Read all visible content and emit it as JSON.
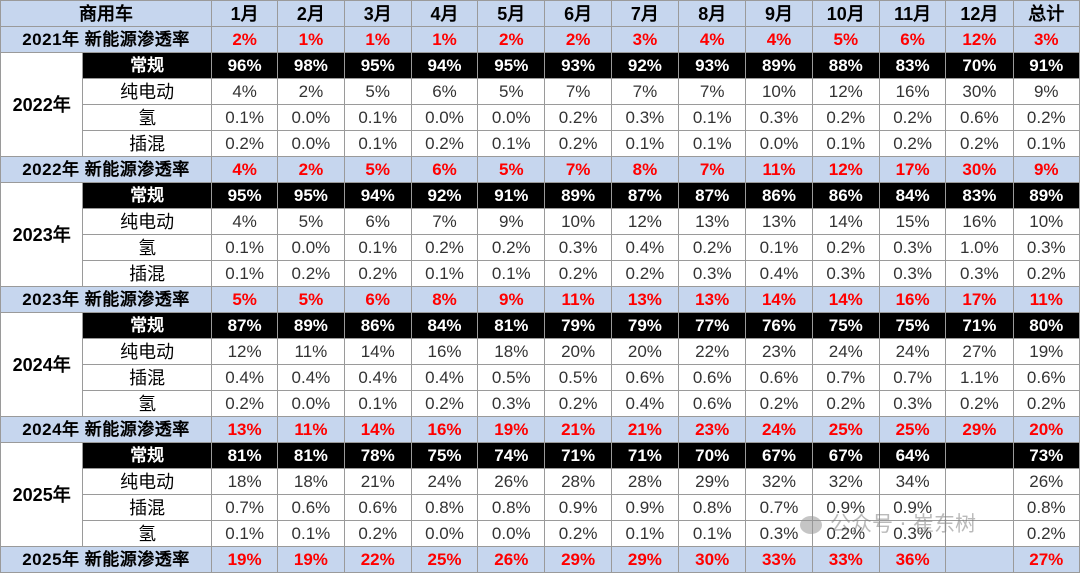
{
  "header": {
    "corner": "商用车",
    "months": [
      "1月",
      "2月",
      "3月",
      "4月",
      "5月",
      "6月",
      "7月",
      "8月",
      "9月",
      "10月",
      "11月",
      "12月",
      "总计"
    ]
  },
  "rows": [
    {
      "kind": "pen",
      "label": "2021年 新能源渗透率",
      "values": [
        "2%",
        "1%",
        "1%",
        "1%",
        "2%",
        "2%",
        "3%",
        "4%",
        "4%",
        "5%",
        "6%",
        "12%",
        "3%"
      ]
    },
    {
      "kind": "conv",
      "year": "2022年",
      "name": "常规",
      "values": [
        "96%",
        "98%",
        "95%",
        "94%",
        "95%",
        "93%",
        "92%",
        "93%",
        "89%",
        "88%",
        "83%",
        "70%",
        "91%"
      ]
    },
    {
      "kind": "sub",
      "name": "纯电动",
      "values": [
        "4%",
        "2%",
        "5%",
        "6%",
        "5%",
        "7%",
        "7%",
        "7%",
        "10%",
        "12%",
        "16%",
        "30%",
        "9%"
      ]
    },
    {
      "kind": "sub",
      "name": "氢",
      "values": [
        "0.1%",
        "0.0%",
        "0.1%",
        "0.0%",
        "0.0%",
        "0.2%",
        "0.3%",
        "0.1%",
        "0.3%",
        "0.2%",
        "0.2%",
        "0.6%",
        "0.2%"
      ]
    },
    {
      "kind": "sub",
      "name": "插混",
      "values": [
        "0.2%",
        "0.0%",
        "0.1%",
        "0.2%",
        "0.1%",
        "0.2%",
        "0.1%",
        "0.1%",
        "0.0%",
        "0.1%",
        "0.2%",
        "0.2%",
        "0.1%"
      ]
    },
    {
      "kind": "pen",
      "label": "2022年 新能源渗透率",
      "values": [
        "4%",
        "2%",
        "5%",
        "6%",
        "5%",
        "7%",
        "8%",
        "7%",
        "11%",
        "12%",
        "17%",
        "30%",
        "9%"
      ]
    },
    {
      "kind": "conv",
      "year": "2023年",
      "name": "常规",
      "values": [
        "95%",
        "95%",
        "94%",
        "92%",
        "91%",
        "89%",
        "87%",
        "87%",
        "86%",
        "86%",
        "84%",
        "83%",
        "89%"
      ]
    },
    {
      "kind": "sub",
      "name": "纯电动",
      "values": [
        "4%",
        "5%",
        "6%",
        "7%",
        "9%",
        "10%",
        "12%",
        "13%",
        "13%",
        "14%",
        "15%",
        "16%",
        "10%"
      ]
    },
    {
      "kind": "sub",
      "name": "氢",
      "values": [
        "0.1%",
        "0.0%",
        "0.1%",
        "0.2%",
        "0.2%",
        "0.3%",
        "0.4%",
        "0.2%",
        "0.1%",
        "0.2%",
        "0.3%",
        "1.0%",
        "0.3%"
      ]
    },
    {
      "kind": "sub",
      "name": "插混",
      "values": [
        "0.1%",
        "0.2%",
        "0.2%",
        "0.1%",
        "0.1%",
        "0.2%",
        "0.2%",
        "0.3%",
        "0.4%",
        "0.3%",
        "0.3%",
        "0.3%",
        "0.2%"
      ]
    },
    {
      "kind": "pen",
      "label": "2023年 新能源渗透率",
      "values": [
        "5%",
        "5%",
        "6%",
        "8%",
        "9%",
        "11%",
        "13%",
        "13%",
        "14%",
        "14%",
        "16%",
        "17%",
        "11%"
      ]
    },
    {
      "kind": "conv",
      "year": "2024年",
      "name": "常规",
      "values": [
        "87%",
        "89%",
        "86%",
        "84%",
        "81%",
        "79%",
        "79%",
        "77%",
        "76%",
        "75%",
        "75%",
        "71%",
        "80%"
      ]
    },
    {
      "kind": "sub",
      "name": "纯电动",
      "values": [
        "12%",
        "11%",
        "14%",
        "16%",
        "18%",
        "20%",
        "20%",
        "22%",
        "23%",
        "24%",
        "24%",
        "27%",
        "19%"
      ]
    },
    {
      "kind": "sub",
      "name": "插混",
      "values": [
        "0.4%",
        "0.4%",
        "0.4%",
        "0.4%",
        "0.5%",
        "0.5%",
        "0.6%",
        "0.6%",
        "0.6%",
        "0.7%",
        "0.7%",
        "1.1%",
        "0.6%"
      ]
    },
    {
      "kind": "sub",
      "name": "氢",
      "values": [
        "0.2%",
        "0.0%",
        "0.1%",
        "0.2%",
        "0.3%",
        "0.2%",
        "0.4%",
        "0.6%",
        "0.2%",
        "0.2%",
        "0.3%",
        "0.2%",
        "0.2%"
      ]
    },
    {
      "kind": "pen",
      "label": "2024年 新能源渗透率",
      "values": [
        "13%",
        "11%",
        "14%",
        "16%",
        "19%",
        "21%",
        "21%",
        "23%",
        "24%",
        "25%",
        "25%",
        "29%",
        "20%"
      ]
    },
    {
      "kind": "conv",
      "year": "2025年",
      "name": "常规",
      "values": [
        "81%",
        "81%",
        "78%",
        "75%",
        "74%",
        "71%",
        "71%",
        "70%",
        "67%",
        "67%",
        "64%",
        "",
        "73%"
      ]
    },
    {
      "kind": "sub",
      "name": "纯电动",
      "values": [
        "18%",
        "18%",
        "21%",
        "24%",
        "26%",
        "28%",
        "28%",
        "29%",
        "32%",
        "32%",
        "34%",
        "",
        "26%"
      ]
    },
    {
      "kind": "sub",
      "name": "插混",
      "values": [
        "0.7%",
        "0.6%",
        "0.6%",
        "0.8%",
        "0.8%",
        "0.9%",
        "0.9%",
        "0.8%",
        "0.7%",
        "0.9%",
        "0.9%",
        "",
        "0.8%"
      ]
    },
    {
      "kind": "sub",
      "name": "氢",
      "values": [
        "0.1%",
        "0.1%",
        "0.2%",
        "0.0%",
        "0.0%",
        "0.2%",
        "0.1%",
        "0.1%",
        "0.3%",
        "0.2%",
        "0.3%",
        "",
        "0.2%"
      ]
    },
    {
      "kind": "pen",
      "label": "2025年 新能源渗透率",
      "values": [
        "19%",
        "19%",
        "22%",
        "25%",
        "26%",
        "29%",
        "29%",
        "30%",
        "33%",
        "33%",
        "36%",
        "",
        "27%"
      ]
    }
  ],
  "watermark": "公众号 · 崔东树"
}
